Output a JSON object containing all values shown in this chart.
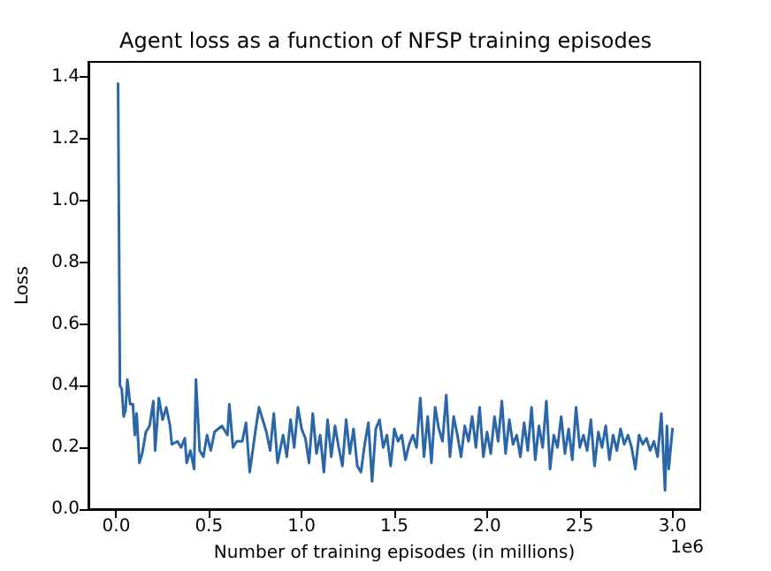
{
  "chart_data": {
    "type": "line",
    "title": "Agent loss as a function of NFSP training episodes",
    "xlabel": "Number of training episodes (in millions)",
    "ylabel": "Loss",
    "annotations": [
      "1e6"
    ],
    "x": [
      0.01,
      0.02,
      0.03,
      0.04,
      0.05,
      0.06,
      0.075,
      0.09,
      0.1,
      0.11,
      0.125,
      0.14,
      0.16,
      0.18,
      0.2,
      0.21,
      0.23,
      0.25,
      0.27,
      0.29,
      0.3,
      0.33,
      0.35,
      0.37,
      0.38,
      0.4,
      0.42,
      0.43,
      0.45,
      0.47,
      0.49,
      0.51,
      0.53,
      0.55,
      0.57,
      0.6,
      0.61,
      0.63,
      0.65,
      0.68,
      0.7,
      0.72,
      0.75,
      0.77,
      0.79,
      0.81,
      0.83,
      0.85,
      0.87,
      0.9,
      0.92,
      0.94,
      0.96,
      0.98,
      1.0,
      1.02,
      1.04,
      1.06,
      1.08,
      1.1,
      1.12,
      1.14,
      1.16,
      1.18,
      1.2,
      1.22,
      1.24,
      1.26,
      1.28,
      1.3,
      1.32,
      1.34,
      1.36,
      1.38,
      1.4,
      1.42,
      1.44,
      1.46,
      1.48,
      1.5,
      1.52,
      1.54,
      1.56,
      1.58,
      1.6,
      1.62,
      1.64,
      1.66,
      1.68,
      1.7,
      1.72,
      1.74,
      1.76,
      1.78,
      1.8,
      1.82,
      1.84,
      1.86,
      1.88,
      1.9,
      1.92,
      1.94,
      1.96,
      1.98,
      2.0,
      2.02,
      2.04,
      2.06,
      2.08,
      2.1,
      2.12,
      2.14,
      2.16,
      2.18,
      2.2,
      2.22,
      2.24,
      2.26,
      2.28,
      2.3,
      2.32,
      2.34,
      2.36,
      2.38,
      2.4,
      2.42,
      2.44,
      2.46,
      2.48,
      2.5,
      2.52,
      2.54,
      2.56,
      2.58,
      2.6,
      2.62,
      2.64,
      2.66,
      2.68,
      2.7,
      2.72,
      2.74,
      2.76,
      2.78,
      2.8,
      2.82,
      2.84,
      2.86,
      2.88,
      2.9,
      2.92,
      2.94,
      2.96,
      2.97,
      2.98,
      3.0
    ],
    "series": [
      {
        "color": "#2a66a8",
        "values": [
          1.38,
          0.4,
          0.39,
          0.3,
          0.32,
          0.42,
          0.34,
          0.34,
          0.24,
          0.31,
          0.15,
          0.18,
          0.25,
          0.27,
          0.35,
          0.19,
          0.36,
          0.29,
          0.33,
          0.27,
          0.21,
          0.22,
          0.2,
          0.23,
          0.15,
          0.19,
          0.13,
          0.42,
          0.19,
          0.17,
          0.24,
          0.19,
          0.25,
          0.26,
          0.27,
          0.24,
          0.34,
          0.2,
          0.22,
          0.22,
          0.28,
          0.12,
          0.25,
          0.33,
          0.29,
          0.25,
          0.19,
          0.31,
          0.15,
          0.24,
          0.17,
          0.29,
          0.2,
          0.33,
          0.26,
          0.23,
          0.15,
          0.31,
          0.18,
          0.24,
          0.12,
          0.29,
          0.17,
          0.27,
          0.2,
          0.14,
          0.29,
          0.18,
          0.26,
          0.14,
          0.12,
          0.21,
          0.28,
          0.09,
          0.26,
          0.29,
          0.2,
          0.24,
          0.14,
          0.26,
          0.22,
          0.24,
          0.16,
          0.21,
          0.24,
          0.2,
          0.36,
          0.17,
          0.3,
          0.15,
          0.33,
          0.26,
          0.22,
          0.37,
          0.17,
          0.3,
          0.24,
          0.17,
          0.27,
          0.22,
          0.3,
          0.2,
          0.33,
          0.17,
          0.25,
          0.18,
          0.3,
          0.22,
          0.35,
          0.18,
          0.29,
          0.21,
          0.24,
          0.17,
          0.28,
          0.19,
          0.33,
          0.16,
          0.27,
          0.2,
          0.35,
          0.13,
          0.24,
          0.2,
          0.3,
          0.18,
          0.26,
          0.16,
          0.33,
          0.2,
          0.24,
          0.19,
          0.29,
          0.14,
          0.25,
          0.2,
          0.27,
          0.16,
          0.24,
          0.19,
          0.26,
          0.21,
          0.24,
          0.2,
          0.13,
          0.24,
          0.21,
          0.23,
          0.19,
          0.22,
          0.17,
          0.31,
          0.06,
          0.27,
          0.13,
          0.26
        ]
      }
    ],
    "xlim": [
      -0.15,
      3.15
    ],
    "ylim": [
      0,
      1.45
    ],
    "xticks": [
      {
        "value": 0,
        "label": "0.0"
      },
      {
        "value": 0.5,
        "label": "0.5"
      },
      {
        "value": 1,
        "label": "1.0"
      },
      {
        "value": 1.5,
        "label": "1.5"
      },
      {
        "value": 2,
        "label": "2.0"
      },
      {
        "value": 2.5,
        "label": "2.5"
      },
      {
        "value": 3,
        "label": "3.0"
      }
    ],
    "yticks": [
      {
        "value": 0,
        "label": "0.0"
      },
      {
        "value": 0.2,
        "label": "0.2"
      },
      {
        "value": 0.4,
        "label": "0.4"
      },
      {
        "value": 0.6,
        "label": "0.6"
      },
      {
        "value": 0.8,
        "label": "0.8"
      },
      {
        "value": 1,
        "label": "1.0"
      },
      {
        "value": 1.2,
        "label": "1.2"
      },
      {
        "value": 1.4,
        "label": "1.4"
      }
    ],
    "grid": false,
    "marker": "none",
    "line_style": "solid"
  }
}
